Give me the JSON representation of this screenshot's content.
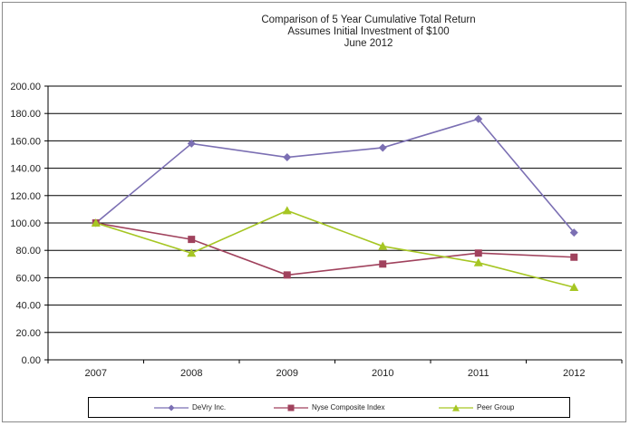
{
  "chart_data": {
    "type": "line",
    "title_lines": [
      "Comparison of 5 Year Cumulative  Total Return",
      "Assumes Initial Investment  of $100",
      "June 2012"
    ],
    "xlabel": "",
    "ylabel": "",
    "categories": [
      "2007",
      "2008",
      "2009",
      "2010",
      "2011",
      "2012"
    ],
    "ylim": [
      0,
      200
    ],
    "yticks": [
      "0.00",
      "20.00",
      "40.00",
      "60.00",
      "80.00",
      "100.00",
      "120.00",
      "140.00",
      "160.00",
      "180.00",
      "200.00"
    ],
    "grid": "horizontal",
    "legend_position": "bottom",
    "series": [
      {
        "name": "DeVry Inc.",
        "color": "#7b6fb3",
        "marker": "diamond",
        "values": [
          100,
          158,
          148,
          155,
          176,
          93
        ]
      },
      {
        "name": "Nyse Composite Index",
        "color": "#a0425d",
        "marker": "square",
        "values": [
          100,
          88,
          62,
          70,
          78,
          75
        ]
      },
      {
        "name": "Peer Group",
        "color": "#a6c623",
        "marker": "triangle",
        "values": [
          100,
          78,
          109,
          83,
          71,
          53
        ]
      }
    ]
  }
}
